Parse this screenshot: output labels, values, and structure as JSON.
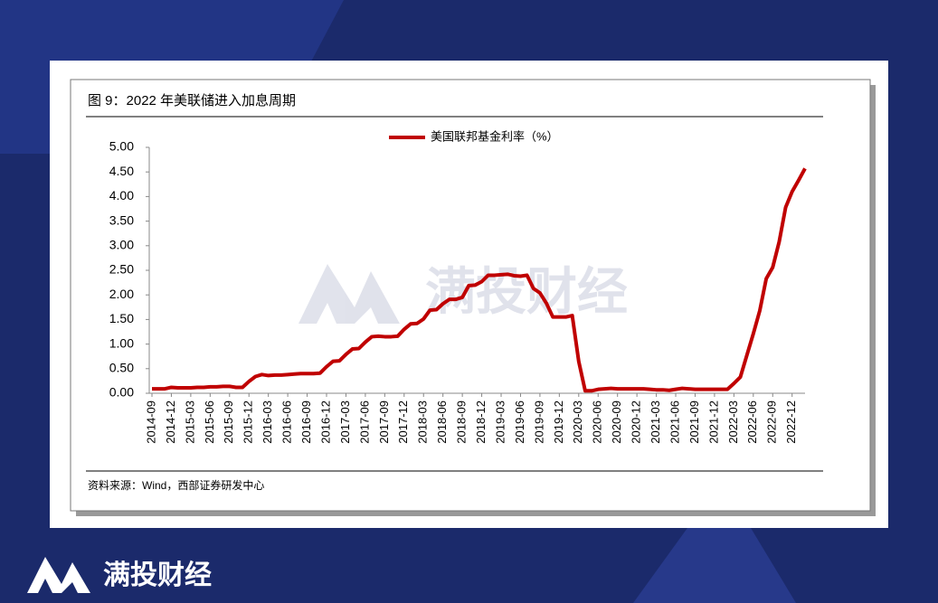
{
  "chart_data": {
    "type": "line",
    "title": "图 9：2022 年美联储进入加息周期",
    "source": "资料来源：Wind，西部证券研发中心",
    "categories": [
      "2014-09",
      null,
      null,
      "2014-12",
      null,
      null,
      "2015-03",
      null,
      null,
      "2015-06",
      null,
      null,
      "2015-09",
      null,
      null,
      "2015-12",
      null,
      null,
      "2016-03",
      null,
      null,
      "2016-06",
      null,
      null,
      "2016-09",
      null,
      null,
      "2016-12",
      null,
      null,
      "2017-03",
      null,
      null,
      "2017-06",
      null,
      null,
      "2017-09",
      null,
      null,
      "2017-12",
      null,
      null,
      "2018-03",
      null,
      null,
      "2018-06",
      null,
      null,
      "2018-09",
      null,
      null,
      "2018-12",
      null,
      null,
      "2019-03",
      null,
      null,
      "2019-06",
      null,
      null,
      "2019-09",
      null,
      null,
      "2019-12",
      null,
      null,
      "2020-03",
      null,
      null,
      "2020-06",
      null,
      null,
      "2020-09",
      null,
      null,
      "2020-12",
      null,
      null,
      "2021-03",
      null,
      null,
      "2021-06",
      null,
      null,
      "2021-09",
      null,
      null,
      "2021-12",
      null,
      null,
      "2022-03",
      null,
      null,
      "2022-06",
      null,
      null,
      "2022-09",
      null,
      null,
      "2022-12",
      null,
      null
    ],
    "series": [
      {
        "name": "美国联邦基金利率（%）",
        "color": "#c00000",
        "values": [
          0.09,
          0.09,
          0.09,
          0.12,
          0.11,
          0.11,
          0.11,
          0.12,
          0.12,
          0.13,
          0.13,
          0.14,
          0.14,
          0.12,
          0.12,
          0.24,
          0.34,
          0.38,
          0.36,
          0.37,
          0.37,
          0.38,
          0.39,
          0.4,
          0.4,
          0.4,
          0.41,
          0.54,
          0.65,
          0.66,
          0.79,
          0.9,
          0.91,
          1.04,
          1.15,
          1.16,
          1.15,
          1.15,
          1.16,
          1.3,
          1.41,
          1.42,
          1.51,
          1.69,
          1.7,
          1.82,
          1.91,
          1.91,
          1.95,
          2.19,
          2.2,
          2.27,
          2.4,
          2.4,
          2.41,
          2.42,
          2.39,
          2.38,
          2.4,
          2.13,
          2.04,
          1.83,
          1.55,
          1.55,
          1.55,
          1.58,
          0.65,
          0.05,
          0.05,
          0.08,
          0.09,
          0.1,
          0.09,
          0.09,
          0.09,
          0.09,
          0.09,
          0.08,
          0.07,
          0.07,
          0.06,
          0.08,
          0.1,
          0.09,
          0.08,
          0.08,
          0.08,
          0.08,
          0.08,
          0.08,
          0.2,
          0.33,
          0.77,
          1.21,
          1.68,
          2.33,
          2.56,
          3.08,
          3.78,
          4.1,
          4.33,
          4.57
        ]
      }
    ],
    "ylim": [
      0,
      5
    ],
    "yticks": [
      {
        "value": 0,
        "label": "0.00"
      },
      {
        "value": 0.5,
        "label": "0.50"
      },
      {
        "value": 1,
        "label": "1.00"
      },
      {
        "value": 1.5,
        "label": "1.50"
      },
      {
        "value": 2,
        "label": "2.00"
      },
      {
        "value": 2.5,
        "label": "2.50"
      },
      {
        "value": 3,
        "label": "3.00"
      },
      {
        "value": 3.5,
        "label": "3.50"
      },
      {
        "value": 4,
        "label": "4.00"
      },
      {
        "value": 4.5,
        "label": "4.50"
      },
      {
        "value": 5,
        "label": "5.00"
      }
    ],
    "grid": false,
    "legend": "top"
  },
  "page": {
    "brand": "满投财经",
    "watermark": "满投财经"
  }
}
